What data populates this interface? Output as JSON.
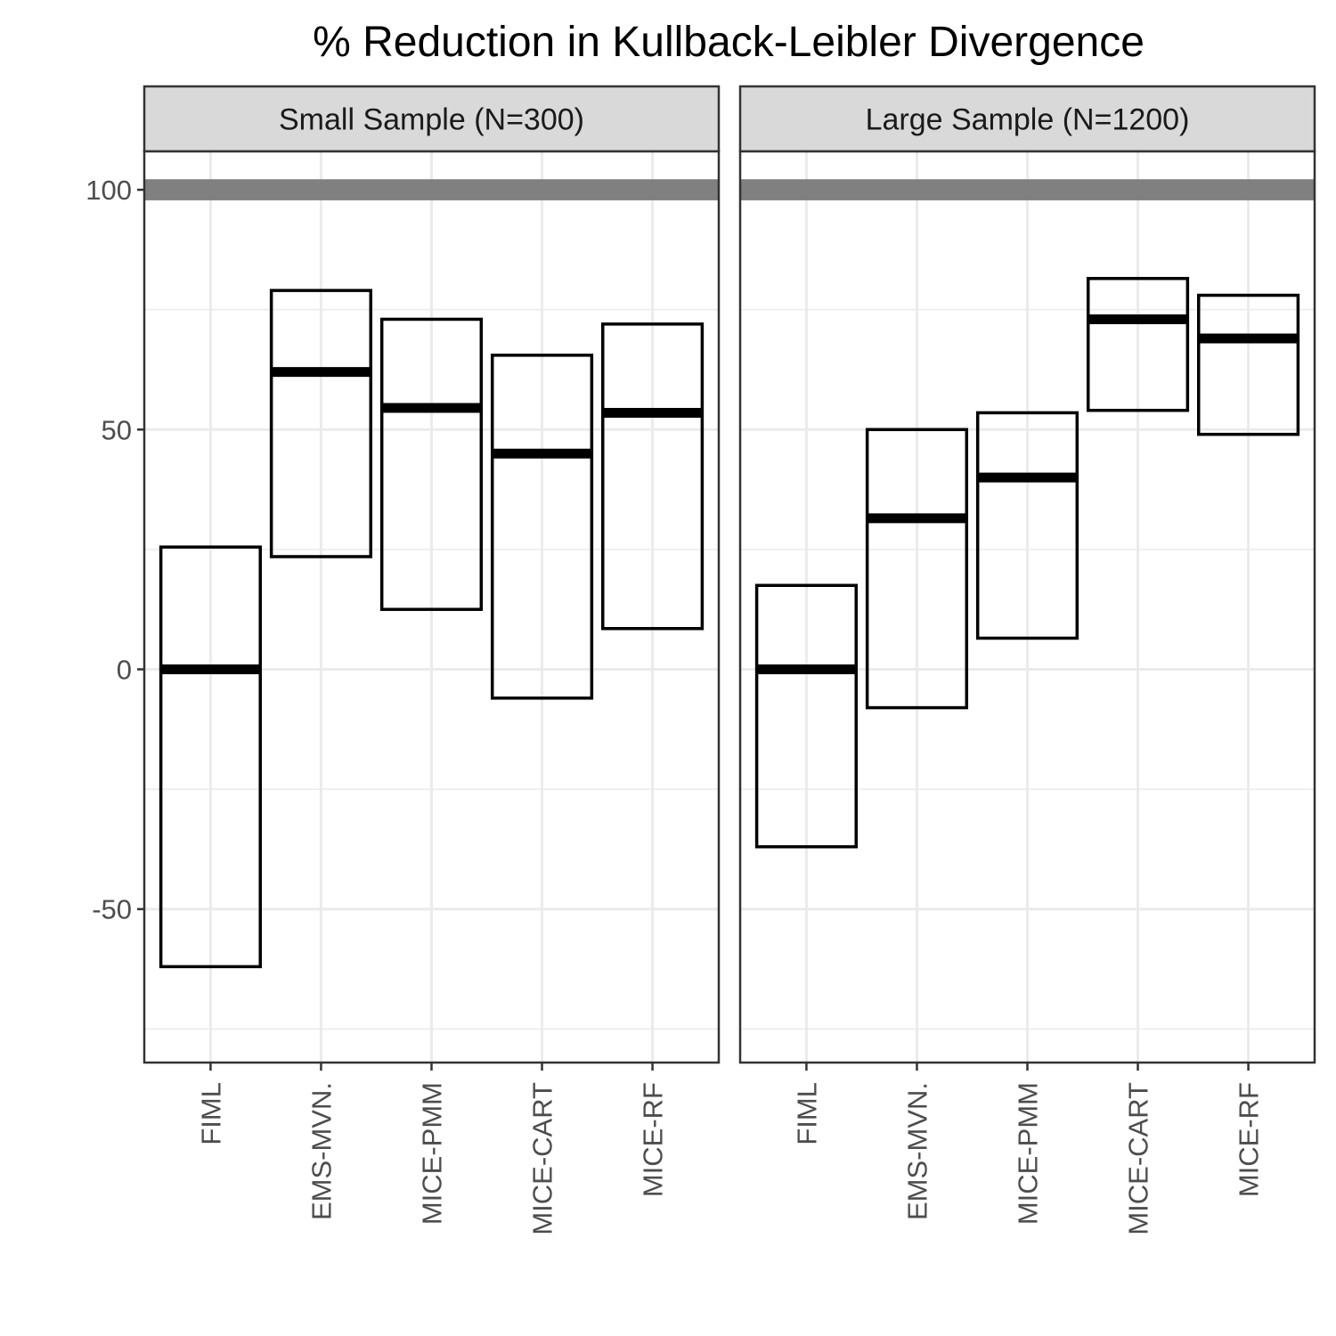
{
  "chart_data": {
    "type": "boxplot-range",
    "title": "% Reduction in Kullback-Leibler Divergence",
    "xlabel": "",
    "ylabel": "",
    "ylim": [
      -82,
      108
    ],
    "y_ticks": [
      100,
      50,
      0,
      -50
    ],
    "grid": true,
    "reference_band": {
      "low": 97.8,
      "high": 102.2,
      "color": "#808080"
    },
    "categories": [
      "FIML",
      "EMS-MVN.",
      "MICE-PMM",
      "MICE-CART",
      "MICE-RF"
    ],
    "panels": [
      {
        "label": "Small Sample (N=300)",
        "boxes": [
          {
            "category": "FIML",
            "low": -62,
            "median": 0,
            "high": 25.5
          },
          {
            "category": "EMS-MVN.",
            "low": 23.5,
            "median": 62,
            "high": 79
          },
          {
            "category": "MICE-PMM",
            "low": 12.5,
            "median": 54.5,
            "high": 73
          },
          {
            "category": "MICE-CART",
            "low": -6,
            "median": 45,
            "high": 65.5
          },
          {
            "category": "MICE-RF",
            "low": 8.5,
            "median": 53.5,
            "high": 72
          }
        ]
      },
      {
        "label": "Large Sample (N=1200)",
        "boxes": [
          {
            "category": "FIML",
            "low": -37,
            "median": 0,
            "high": 17.5
          },
          {
            "category": "EMS-MVN.",
            "low": -8,
            "median": 31.5,
            "high": 50
          },
          {
            "category": "MICE-PMM",
            "low": 6.5,
            "median": 40,
            "high": 53.5
          },
          {
            "category": "MICE-CART",
            "low": 54,
            "median": 73,
            "high": 81.5
          },
          {
            "category": "MICE-RF",
            "low": 49,
            "median": 69,
            "high": 78
          }
        ]
      }
    ]
  }
}
